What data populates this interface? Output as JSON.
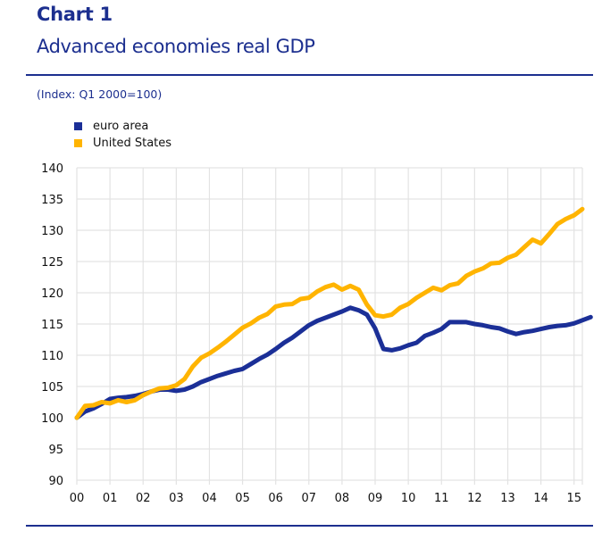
{
  "header": {
    "chart_label": "Chart 1",
    "title": "Advanced economies real GDP",
    "units": "(Index: Q1 2000=100)"
  },
  "colors": {
    "brand": "#1c2f8f",
    "euro_area": "#1b2f97",
    "united_states": "#ffb400",
    "grid": "#e3e3e3"
  },
  "legend": [
    {
      "label": "euro area",
      "color": "#1b2f97"
    },
    {
      "label": "United States",
      "color": "#ffb400"
    }
  ],
  "chart_data": {
    "type": "line",
    "title": "Advanced economies real GDP",
    "subtitle": "(Index: Q1 2000=100)",
    "xlabel": "",
    "ylabel": "",
    "x_start": 2000.0,
    "x_step": 0.25,
    "xlim": [
      2000,
      2015.25
    ],
    "ylim": [
      90,
      140
    ],
    "yticks": [
      90,
      95,
      100,
      105,
      110,
      115,
      120,
      125,
      130,
      135,
      140
    ],
    "xtick_labels": [
      "00",
      "01",
      "02",
      "03",
      "04",
      "05",
      "06",
      "07",
      "08",
      "09",
      "10",
      "11",
      "12",
      "13",
      "14",
      "15"
    ],
    "grid": true,
    "legend_position": "top-left",
    "series": [
      {
        "name": "euro area",
        "color": "#1b2f97",
        "values": [
          100,
          101,
          101.5,
          102.2,
          103,
          103.2,
          103.3,
          103.5,
          103.8,
          104.2,
          104.5,
          104.5,
          104.3,
          104.5,
          105,
          105.7,
          106.2,
          106.7,
          107.1,
          107.5,
          107.8,
          108.6,
          109.4,
          110.1,
          111,
          112,
          112.8,
          113.8,
          114.8,
          115.5,
          116,
          116.5,
          117,
          117.6,
          117.2,
          116.5,
          114.3,
          111,
          110.8,
          111.1,
          111.6,
          112,
          113.1,
          113.6,
          114.2,
          115.3,
          115.3,
          115.3,
          115,
          114.8,
          114.5,
          114.3,
          113.8,
          113.4,
          113.7,
          113.9,
          114.2,
          114.5,
          114.7,
          114.8,
          115.1,
          115.6,
          116.1
        ]
      },
      {
        "name": "United States",
        "color": "#ffb400",
        "values": [
          100,
          101.9,
          102,
          102.5,
          102.3,
          102.8,
          102.5,
          102.8,
          103.6,
          104.2,
          104.7,
          104.8,
          105.2,
          106.2,
          108.2,
          109.6,
          110.3,
          111.2,
          112.2,
          113.3,
          114.4,
          115.1,
          116,
          116.6,
          117.8,
          118.1,
          118.2,
          119,
          119.2,
          120.2,
          120.9,
          121.3,
          120.5,
          121.1,
          120.5,
          118.1,
          116.4,
          116.2,
          116.5,
          117.6,
          118.2,
          119.2,
          120,
          120.8,
          120.4,
          121.2,
          121.5,
          122.7,
          123.4,
          123.9,
          124.7,
          124.8,
          125.6,
          126.1,
          127.3,
          128.5,
          127.9,
          129.4,
          131,
          131.8,
          132.4,
          133.4
        ]
      }
    ]
  }
}
